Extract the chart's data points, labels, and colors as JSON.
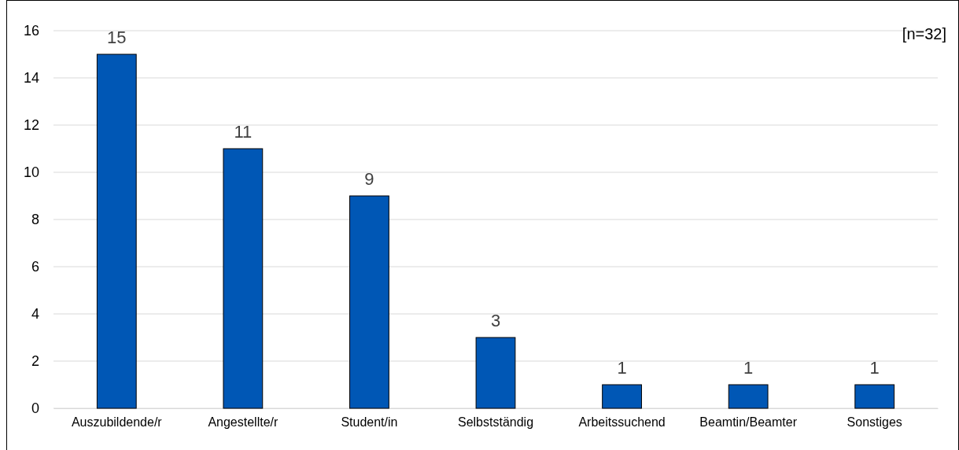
{
  "chart_data": {
    "type": "bar",
    "categories": [
      "Auszubildende/r",
      "Angestellte/r",
      "Student/in",
      "Selbstständig",
      "Arbeitssuchend",
      "Beamtin/Beamter",
      "Sonstiges"
    ],
    "values": [
      15,
      11,
      9,
      3,
      1,
      1,
      1
    ],
    "color": "#0057b5",
    "ylim": [
      0,
      16
    ],
    "yticks": [
      0,
      2,
      4,
      6,
      8,
      10,
      12,
      14,
      16
    ],
    "grid": "y",
    "data_labels": true,
    "annotations": [
      "[n=32]"
    ]
  }
}
